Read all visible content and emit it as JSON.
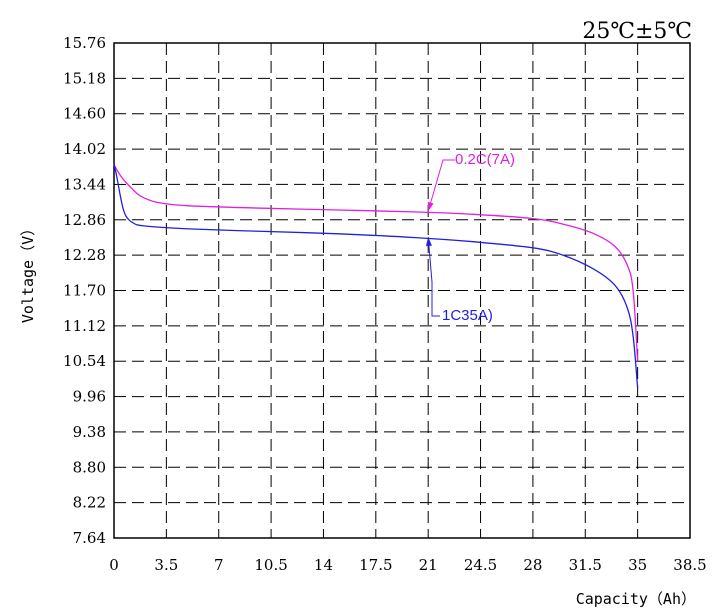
{
  "chart_data": {
    "type": "line",
    "title": "25℃±5℃",
    "xlabel": "Capacity（Ah）",
    "ylabel": "Voltage（V）",
    "xlim": [
      0,
      38.5
    ],
    "ylim": [
      7.64,
      15.76
    ],
    "grid": true,
    "x_ticks": [
      0,
      3.5,
      7,
      10.5,
      14,
      17.5,
      21,
      24.5,
      28,
      31.5,
      35,
      38.5
    ],
    "x_tick_labels": [
      "0",
      "3.5",
      "7",
      "10.5",
      "14",
      "17.5",
      "21",
      "24.5",
      "28",
      "31.5",
      "35",
      "38.5"
    ],
    "y_ticks": [
      7.64,
      8.22,
      8.8,
      9.38,
      9.96,
      10.54,
      11.12,
      11.7,
      12.28,
      12.86,
      13.44,
      14.02,
      14.6,
      15.18,
      15.76
    ],
    "y_tick_labels": [
      "7.64",
      "8.22",
      "8.80",
      "9.38",
      "9.96",
      "10.54",
      "11.12",
      "11.70",
      "12.28",
      "12.86",
      "13.44",
      "14.02",
      "14.60",
      "15.18",
      "15.76"
    ],
    "series": [
      {
        "name": "0.2C(7A)",
        "color": "#e020e0",
        "points": [
          [
            0,
            13.76
          ],
          [
            0.5,
            13.56
          ],
          [
            1,
            13.42
          ],
          [
            1.5,
            13.3
          ],
          [
            2,
            13.22
          ],
          [
            3,
            13.14
          ],
          [
            5,
            13.09
          ],
          [
            10,
            13.05
          ],
          [
            15,
            13.02
          ],
          [
            20,
            12.99
          ],
          [
            24,
            12.95
          ],
          [
            28,
            12.88
          ],
          [
            30,
            12.79
          ],
          [
            32,
            12.64
          ],
          [
            33.5,
            12.42
          ],
          [
            34.3,
            12.12
          ],
          [
            34.7,
            11.7
          ],
          [
            35,
            10.54
          ]
        ]
      },
      {
        "name": "1C35A)",
        "color": "#2020e0",
        "points": [
          [
            0,
            13.78
          ],
          [
            0.2,
            13.55
          ],
          [
            0.4,
            13.28
          ],
          [
            0.6,
            13.05
          ],
          [
            0.8,
            12.92
          ],
          [
            1.2,
            12.82
          ],
          [
            2,
            12.76
          ],
          [
            5,
            12.71
          ],
          [
            10,
            12.67
          ],
          [
            15,
            12.63
          ],
          [
            20,
            12.57
          ],
          [
            24,
            12.5
          ],
          [
            28,
            12.4
          ],
          [
            30,
            12.28
          ],
          [
            32,
            12.06
          ],
          [
            33.5,
            11.78
          ],
          [
            34.3,
            11.42
          ],
          [
            34.7,
            10.95
          ],
          [
            35,
            10.1
          ]
        ]
      }
    ],
    "annotations": [
      {
        "text": "0.2C(7A)",
        "series": 0,
        "arrow_to": [
          21,
          13.0
        ]
      },
      {
        "text": "1C35A)",
        "series": 1,
        "arrow_to": [
          21,
          12.58
        ]
      }
    ]
  }
}
